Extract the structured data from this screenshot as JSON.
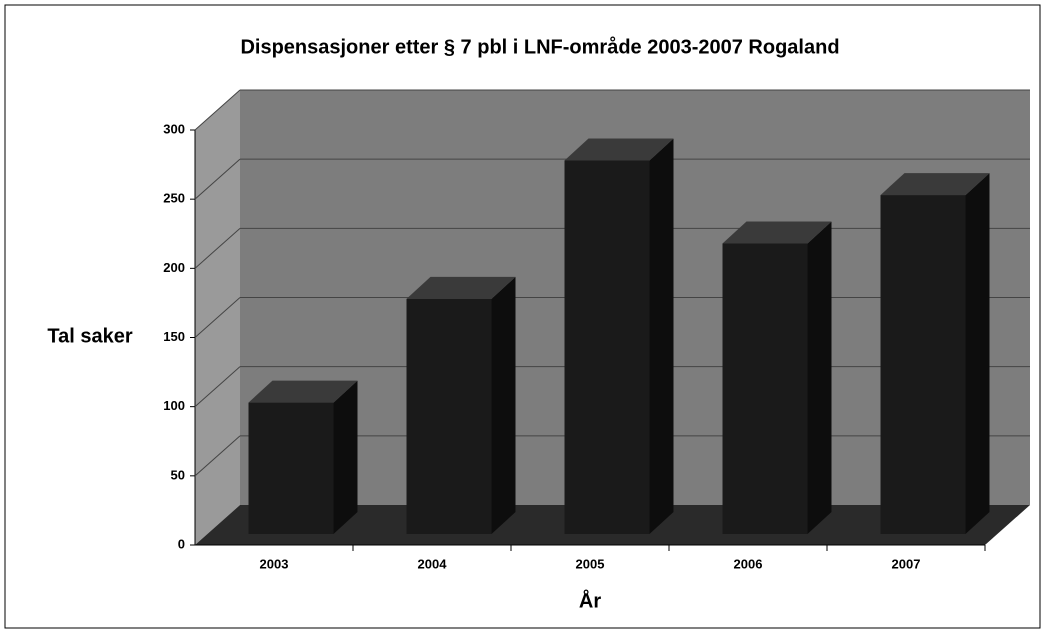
{
  "chart_data": {
    "type": "bar3d",
    "title": "Dispensasjoner etter § 7 pbl i LNF-område 2003-2007 Rogaland",
    "x_label": "År",
    "y_label": "Tal saker",
    "categories": [
      "2003",
      "2004",
      "2005",
      "2006",
      "2007"
    ],
    "values": [
      95,
      170,
      270,
      210,
      245
    ],
    "color": "#1a1a1a",
    "ylim": [
      0,
      300
    ],
    "yticks": [
      0,
      50,
      100,
      150,
      200,
      250,
      300
    ],
    "grid": true
  }
}
